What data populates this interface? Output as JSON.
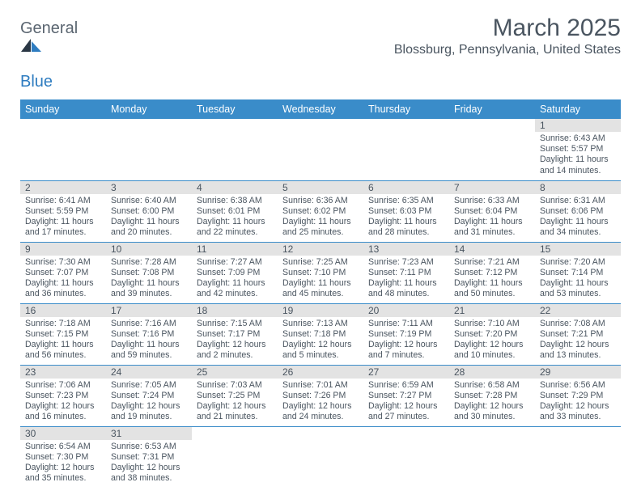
{
  "logo": {
    "text_a": "Genera",
    "text_b": "l",
    "text_c": "Blue"
  },
  "title": "March 2025",
  "location": "Blossburg, Pennsylvania, United States",
  "colors": {
    "header_bg": "#3a8cc9",
    "header_text": "#ffffff",
    "daynum_bg": "#e3e3e3",
    "border": "#3a8cc9",
    "text": "#4a5560",
    "logo_gray": "#5a6570",
    "logo_blue": "#2e7cc0",
    "logo_dark": "#2a3744"
  },
  "weekdays": [
    "Sunday",
    "Monday",
    "Tuesday",
    "Wednesday",
    "Thursday",
    "Friday",
    "Saturday"
  ],
  "weeks": [
    [
      {
        "blank": true
      },
      {
        "blank": true
      },
      {
        "blank": true
      },
      {
        "blank": true
      },
      {
        "blank": true
      },
      {
        "blank": true
      },
      {
        "n": "1",
        "sr": "6:43 AM",
        "ss": "5:57 PM",
        "dl": "11 hours and 14 minutes."
      }
    ],
    [
      {
        "n": "2",
        "sr": "6:41 AM",
        "ss": "5:59 PM",
        "dl": "11 hours and 17 minutes."
      },
      {
        "n": "3",
        "sr": "6:40 AM",
        "ss": "6:00 PM",
        "dl": "11 hours and 20 minutes."
      },
      {
        "n": "4",
        "sr": "6:38 AM",
        "ss": "6:01 PM",
        "dl": "11 hours and 22 minutes."
      },
      {
        "n": "5",
        "sr": "6:36 AM",
        "ss": "6:02 PM",
        "dl": "11 hours and 25 minutes."
      },
      {
        "n": "6",
        "sr": "6:35 AM",
        "ss": "6:03 PM",
        "dl": "11 hours and 28 minutes."
      },
      {
        "n": "7",
        "sr": "6:33 AM",
        "ss": "6:04 PM",
        "dl": "11 hours and 31 minutes."
      },
      {
        "n": "8",
        "sr": "6:31 AM",
        "ss": "6:06 PM",
        "dl": "11 hours and 34 minutes."
      }
    ],
    [
      {
        "n": "9",
        "sr": "7:30 AM",
        "ss": "7:07 PM",
        "dl": "11 hours and 36 minutes."
      },
      {
        "n": "10",
        "sr": "7:28 AM",
        "ss": "7:08 PM",
        "dl": "11 hours and 39 minutes."
      },
      {
        "n": "11",
        "sr": "7:27 AM",
        "ss": "7:09 PM",
        "dl": "11 hours and 42 minutes."
      },
      {
        "n": "12",
        "sr": "7:25 AM",
        "ss": "7:10 PM",
        "dl": "11 hours and 45 minutes."
      },
      {
        "n": "13",
        "sr": "7:23 AM",
        "ss": "7:11 PM",
        "dl": "11 hours and 48 minutes."
      },
      {
        "n": "14",
        "sr": "7:21 AM",
        "ss": "7:12 PM",
        "dl": "11 hours and 50 minutes."
      },
      {
        "n": "15",
        "sr": "7:20 AM",
        "ss": "7:14 PM",
        "dl": "11 hours and 53 minutes."
      }
    ],
    [
      {
        "n": "16",
        "sr": "7:18 AM",
        "ss": "7:15 PM",
        "dl": "11 hours and 56 minutes."
      },
      {
        "n": "17",
        "sr": "7:16 AM",
        "ss": "7:16 PM",
        "dl": "11 hours and 59 minutes."
      },
      {
        "n": "18",
        "sr": "7:15 AM",
        "ss": "7:17 PM",
        "dl": "12 hours and 2 minutes."
      },
      {
        "n": "19",
        "sr": "7:13 AM",
        "ss": "7:18 PM",
        "dl": "12 hours and 5 minutes."
      },
      {
        "n": "20",
        "sr": "7:11 AM",
        "ss": "7:19 PM",
        "dl": "12 hours and 7 minutes."
      },
      {
        "n": "21",
        "sr": "7:10 AM",
        "ss": "7:20 PM",
        "dl": "12 hours and 10 minutes."
      },
      {
        "n": "22",
        "sr": "7:08 AM",
        "ss": "7:21 PM",
        "dl": "12 hours and 13 minutes."
      }
    ],
    [
      {
        "n": "23",
        "sr": "7:06 AM",
        "ss": "7:23 PM",
        "dl": "12 hours and 16 minutes."
      },
      {
        "n": "24",
        "sr": "7:05 AM",
        "ss": "7:24 PM",
        "dl": "12 hours and 19 minutes."
      },
      {
        "n": "25",
        "sr": "7:03 AM",
        "ss": "7:25 PM",
        "dl": "12 hours and 21 minutes."
      },
      {
        "n": "26",
        "sr": "7:01 AM",
        "ss": "7:26 PM",
        "dl": "12 hours and 24 minutes."
      },
      {
        "n": "27",
        "sr": "6:59 AM",
        "ss": "7:27 PM",
        "dl": "12 hours and 27 minutes."
      },
      {
        "n": "28",
        "sr": "6:58 AM",
        "ss": "7:28 PM",
        "dl": "12 hours and 30 minutes."
      },
      {
        "n": "29",
        "sr": "6:56 AM",
        "ss": "7:29 PM",
        "dl": "12 hours and 33 minutes."
      }
    ],
    [
      {
        "n": "30",
        "sr": "6:54 AM",
        "ss": "7:30 PM",
        "dl": "12 hours and 35 minutes."
      },
      {
        "n": "31",
        "sr": "6:53 AM",
        "ss": "7:31 PM",
        "dl": "12 hours and 38 minutes."
      },
      {
        "blank": true
      },
      {
        "blank": true
      },
      {
        "blank": true
      },
      {
        "blank": true
      },
      {
        "blank": true
      }
    ]
  ],
  "labels": {
    "sunrise": "Sunrise:",
    "sunset": "Sunset:",
    "daylight": "Daylight:"
  }
}
